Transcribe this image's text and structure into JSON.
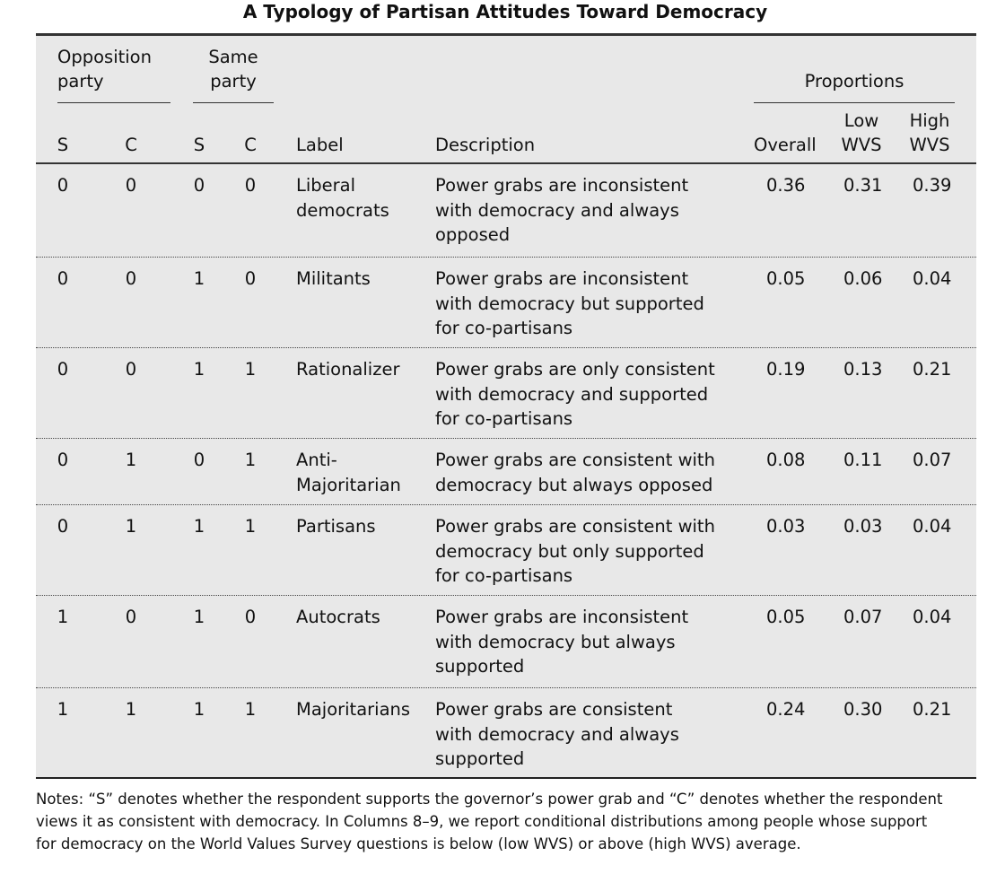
{
  "title": "A Typology of Partisan Attitudes Toward Democracy",
  "header": {
    "opposition_line1": "Opposition",
    "opposition_line2": "party",
    "same_line1": "Same",
    "same_line2": "party",
    "proportions": "Proportions",
    "s1": "S",
    "c1": "C",
    "s2": "S",
    "c2": "C",
    "label": "Label",
    "description": "Description",
    "overall": "Overall",
    "low_line1": "Low",
    "low_line2": "WVS",
    "high_line1": "High",
    "high_line2": "WVS"
  },
  "rows": [
    {
      "os": "0",
      "oc": "0",
      "ss": "0",
      "sc": "0",
      "label": [
        "Liberal",
        "democrats"
      ],
      "desc": [
        "Power grabs are inconsistent",
        "with democracy and always",
        "opposed"
      ],
      "overall": "0.36",
      "low": "0.31",
      "high": "0.39"
    },
    {
      "os": "0",
      "oc": "0",
      "ss": "1",
      "sc": "0",
      "label": [
        "Militants"
      ],
      "desc": [
        "Power grabs are inconsistent",
        "with democracy but supported",
        "for co-partisans"
      ],
      "overall": "0.05",
      "low": "0.06",
      "high": "0.04"
    },
    {
      "os": "0",
      "oc": "0",
      "ss": "1",
      "sc": "1",
      "label": [
        "Rationalizer"
      ],
      "desc": [
        "Power grabs are only consistent",
        "with democracy and supported",
        "for co-partisans"
      ],
      "overall": "0.19",
      "low": "0.13",
      "high": "0.21"
    },
    {
      "os": "0",
      "oc": "1",
      "ss": "0",
      "sc": "1",
      "label": [
        "Anti-",
        "Majoritarian"
      ],
      "desc": [
        "Power grabs are consistent with",
        "democracy but always opposed"
      ],
      "overall": "0.08",
      "low": "0.11",
      "high": "0.07"
    },
    {
      "os": "0",
      "oc": "1",
      "ss": "1",
      "sc": "1",
      "label": [
        "Partisans"
      ],
      "desc": [
        "Power grabs are consistent with",
        "democracy but only supported",
        "for co-partisans"
      ],
      "overall": "0.03",
      "low": "0.03",
      "high": "0.04"
    },
    {
      "os": "1",
      "oc": "0",
      "ss": "1",
      "sc": "0",
      "label": [
        "Autocrats"
      ],
      "desc": [
        "Power grabs are inconsistent",
        "with democracy but always",
        "supported"
      ],
      "overall": "0.05",
      "low": "0.07",
      "high": "0.04"
    },
    {
      "os": "1",
      "oc": "1",
      "ss": "1",
      "sc": "1",
      "label": [
        "Majoritarians"
      ],
      "desc": [
        "Power grabs are consistent",
        "with democracy and always",
        "supported"
      ],
      "overall": "0.24",
      "low": "0.30",
      "high": "0.21"
    }
  ],
  "notes": [
    "Notes: “S” denotes whether the respondent supports the governor’s power grab and “C” denotes whether the respondent",
    "views it as consistent with democracy. In Columns 8–9, we report conditional distributions among people whose support",
    "for democracy on the World Values Survey questions is below (low WVS) or above (high WVS) average."
  ]
}
